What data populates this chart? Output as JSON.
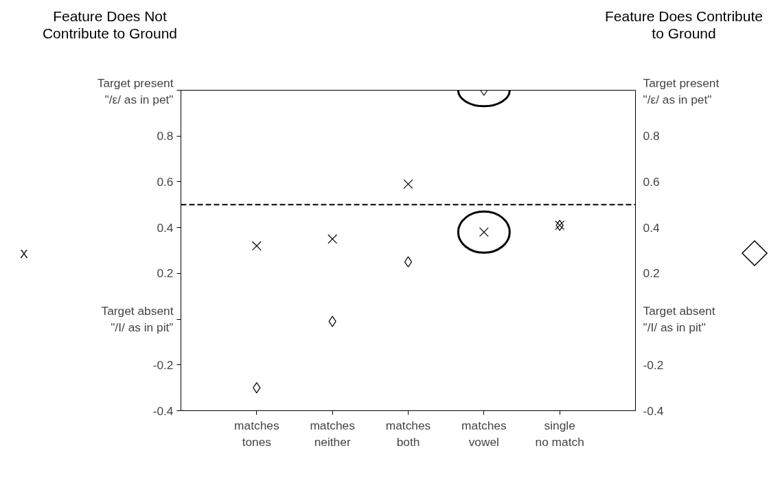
{
  "chart_data": {
    "type": "scatter",
    "categories": [
      "matches\ntones",
      "matches\nneither",
      "matches\nboth",
      "matches\nvowel",
      "single\nno match"
    ],
    "series": [
      {
        "type": "scatter",
        "marker": "cross",
        "color": "#000000",
        "values": [
          0.32,
          0.35,
          0.59,
          0.38,
          0.41
        ]
      },
      {
        "type": "scatter",
        "marker": "diamond",
        "color": "#000000",
        "values": [
          -0.3,
          -0.01,
          0.25,
          1.0,
          0.41
        ]
      }
    ],
    "ylim": [
      -0.4,
      1.0
    ],
    "yticks": [
      -0.4,
      -0.2,
      {
        "value": 0,
        "label": "Target absent\n\"/I/ as in pit\""
      },
      0.2,
      0.4,
      0.6,
      0.8,
      {
        "value": 1.0,
        "label": "Target present\n\"/ε/ as in pet\""
      }
    ],
    "y2lim": [
      -0.4,
      1.0
    ],
    "y2ticks": [
      -0.4,
      -0.2,
      {
        "value": 0,
        "label": "Target absent\n\"/I/ as in pit\""
      },
      0.2,
      0.4,
      0.6,
      0.8,
      {
        "value": 1.0,
        "label": "Target present\n\"/ε/ as in pet\""
      }
    ],
    "ref_lines": [
      {
        "axis": "y",
        "value": 0.5,
        "line_style": "dashed",
        "color": "#000000"
      }
    ],
    "annotations": [
      "Feature Does Not\nContribute to Ground",
      "Feature Does Contribute\nto Ground",
      "X"
    ],
    "grid": false
  }
}
